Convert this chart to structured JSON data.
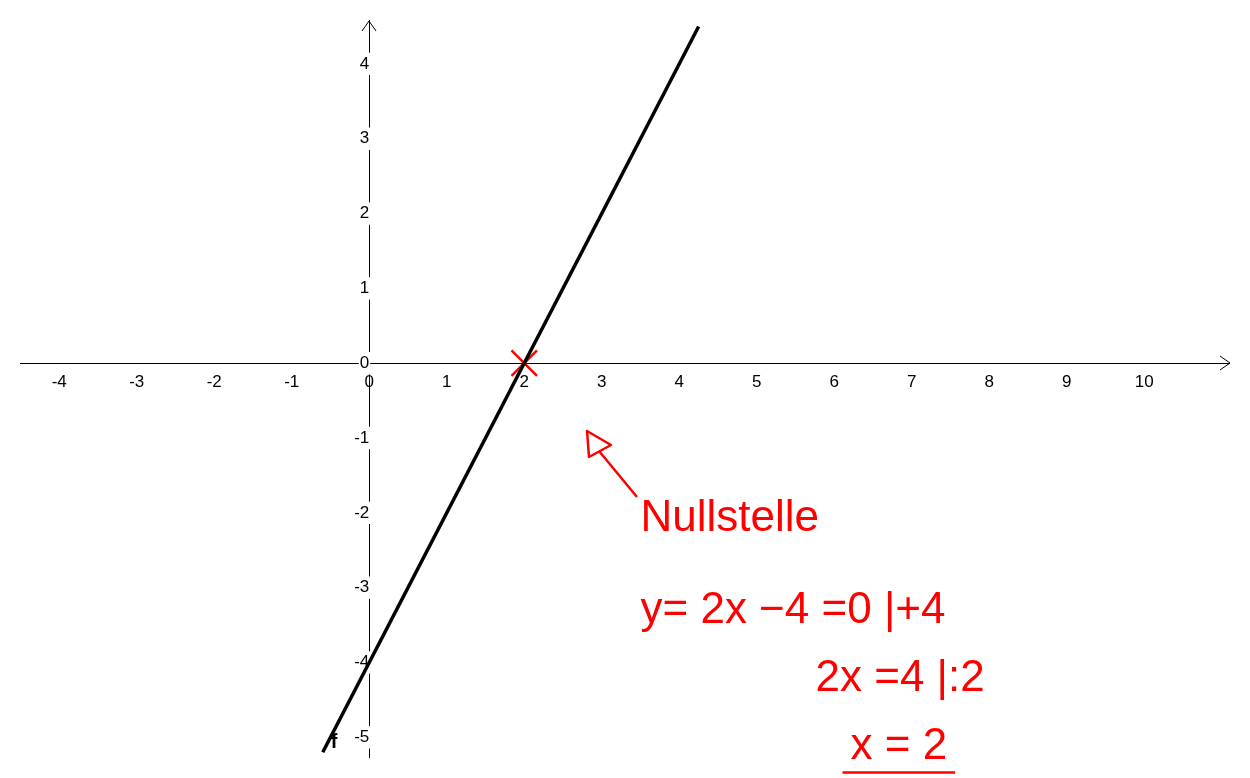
{
  "chart_data": {
    "type": "line",
    "series": [
      {
        "name": "f",
        "color": "#000000",
        "x": [
          -0.6,
          4.25
        ],
        "values": [
          -5.2,
          4.5
        ]
      },
      {
        "type": "scatter",
        "color": "#ff0000",
        "x": [
          2
        ],
        "values": [
          0
        ],
        "marker": "cross"
      }
    ],
    "xlim": [
      -4.5,
      11.1
    ],
    "ylim": [
      -5.27,
      4.58
    ],
    "xticks": [
      -4,
      -3,
      -2,
      -1,
      0,
      1,
      2,
      3,
      4,
      5,
      6,
      7,
      8,
      9,
      10
    ],
    "yticks": [
      -5,
      -4,
      -3,
      -2,
      -1,
      0,
      1,
      2,
      3,
      4
    ],
    "grid": false,
    "legend": false,
    "annotations": [
      "Nullstelle",
      "y= 2x −4 =0 |+4",
      "2x =4 |:2",
      "x = 2"
    ]
  }
}
